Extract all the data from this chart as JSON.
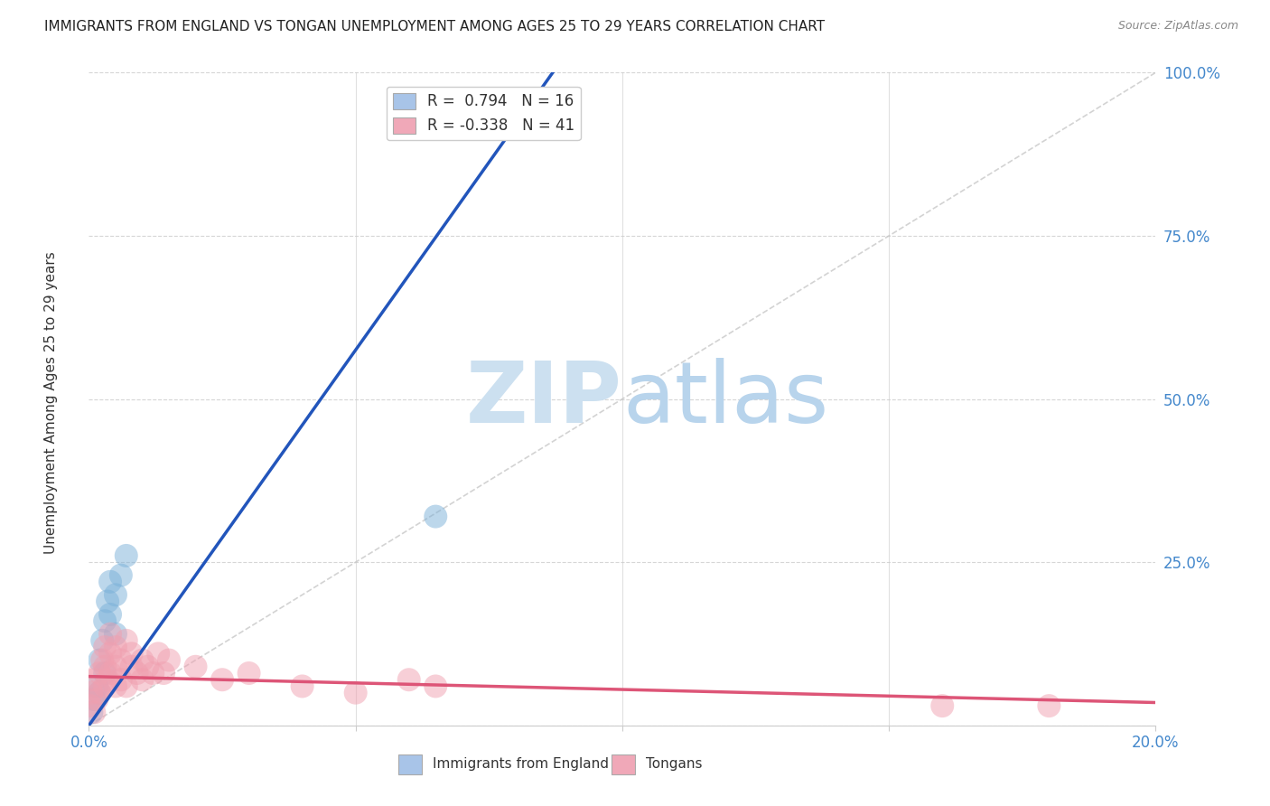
{
  "title": "IMMIGRANTS FROM ENGLAND VS TONGAN UNEMPLOYMENT AMONG AGES 25 TO 29 YEARS CORRELATION CHART",
  "source": "Source: ZipAtlas.com",
  "ylabel": "Unemployment Among Ages 25 to 29 years",
  "xlim": [
    0.0,
    0.2
  ],
  "ylim": [
    0.0,
    1.0
  ],
  "yticks": [
    0.0,
    0.25,
    0.5,
    0.75,
    1.0
  ],
  "ytick_labels": [
    "",
    "25.0%",
    "50.0%",
    "75.0%",
    "100.0%"
  ],
  "xticks": [
    0.0,
    0.05,
    0.1,
    0.15,
    0.2
  ],
  "grid_color": "#cccccc",
  "background_color": "#ffffff",
  "legend_R1": "0.794",
  "legend_N1": "16",
  "legend_R2": "-0.338",
  "legend_N2": "41",
  "legend_color1": "#a8c4e8",
  "legend_color2": "#f0a8b8",
  "series1_color": "#7ab0d8",
  "series2_color": "#f0a0b0",
  "line1_color": "#2255bb",
  "line2_color": "#dd5577",
  "diagonal_color": "#c8c8c8",
  "england_x": [
    0.0005,
    0.001,
    0.0015,
    0.002,
    0.002,
    0.0025,
    0.003,
    0.003,
    0.0035,
    0.004,
    0.004,
    0.005,
    0.005,
    0.006,
    0.007,
    0.065
  ],
  "england_y": [
    0.02,
    0.04,
    0.06,
    0.05,
    0.1,
    0.13,
    0.08,
    0.16,
    0.19,
    0.17,
    0.22,
    0.2,
    0.14,
    0.23,
    0.26,
    0.32
  ],
  "tongan_x": [
    0.0003,
    0.0005,
    0.001,
    0.001,
    0.0015,
    0.002,
    0.002,
    0.0025,
    0.003,
    0.003,
    0.003,
    0.0035,
    0.004,
    0.004,
    0.004,
    0.005,
    0.005,
    0.005,
    0.006,
    0.006,
    0.007,
    0.007,
    0.008,
    0.008,
    0.009,
    0.01,
    0.01,
    0.011,
    0.012,
    0.013,
    0.014,
    0.015,
    0.02,
    0.025,
    0.03,
    0.04,
    0.05,
    0.06,
    0.065,
    0.16,
    0.18
  ],
  "tongan_y": [
    0.03,
    0.05,
    0.02,
    0.07,
    0.04,
    0.08,
    0.05,
    0.1,
    0.06,
    0.09,
    0.12,
    0.07,
    0.11,
    0.08,
    0.14,
    0.09,
    0.06,
    0.12,
    0.1,
    0.07,
    0.13,
    0.06,
    0.11,
    0.09,
    0.08,
    0.1,
    0.07,
    0.09,
    0.08,
    0.11,
    0.08,
    0.1,
    0.09,
    0.07,
    0.08,
    0.06,
    0.05,
    0.07,
    0.06,
    0.03,
    0.03
  ],
  "r_value_color": "#4488cc",
  "axis_label_color": "#4488cc",
  "title_color": "#222222",
  "source_color": "#888888"
}
